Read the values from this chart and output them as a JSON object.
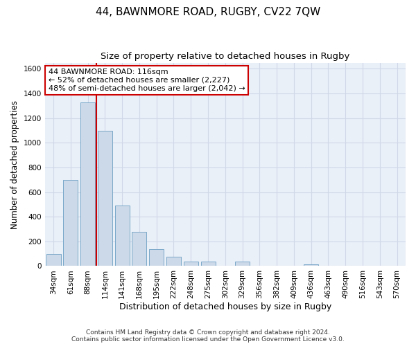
{
  "title": "44, BAWNMORE ROAD, RUGBY, CV22 7QW",
  "subtitle": "Size of property relative to detached houses in Rugby",
  "xlabel": "Distribution of detached houses by size in Rugby",
  "ylabel": "Number of detached properties",
  "footer": "Contains HM Land Registry data © Crown copyright and database right 2024.\nContains public sector information licensed under the Open Government Licence v3.0.",
  "categories": [
    "34sqm",
    "61sqm",
    "88sqm",
    "114sqm",
    "141sqm",
    "168sqm",
    "195sqm",
    "222sqm",
    "248sqm",
    "275sqm",
    "302sqm",
    "329sqm",
    "356sqm",
    "382sqm",
    "409sqm",
    "436sqm",
    "463sqm",
    "490sqm",
    "516sqm",
    "543sqm",
    "570sqm"
  ],
  "values": [
    100,
    700,
    1330,
    1100,
    490,
    280,
    140,
    75,
    35,
    35,
    0,
    35,
    0,
    0,
    0,
    15,
    0,
    0,
    0,
    0,
    0
  ],
  "bar_color": "#ccd9e8",
  "bar_edgecolor": "#6a9ec2",
  "redline_index": 2,
  "redline_color": "#cc0000",
  "ylim": [
    0,
    1650
  ],
  "yticks": [
    0,
    200,
    400,
    600,
    800,
    1000,
    1200,
    1400,
    1600
  ],
  "annotation_text": "44 BAWNMORE ROAD: 116sqm\n← 52% of detached houses are smaller (2,227)\n48% of semi-detached houses are larger (2,042) →",
  "annotation_box_color": "#ffffff",
  "annotation_box_edgecolor": "#cc0000",
  "bg_color": "#eaf0f8",
  "grid_color": "#d0d8e8",
  "title_fontsize": 11,
  "subtitle_fontsize": 9.5,
  "xlabel_fontsize": 9,
  "ylabel_fontsize": 8.5,
  "tick_fontsize": 7.5,
  "annotation_fontsize": 8,
  "footer_fontsize": 6.5
}
